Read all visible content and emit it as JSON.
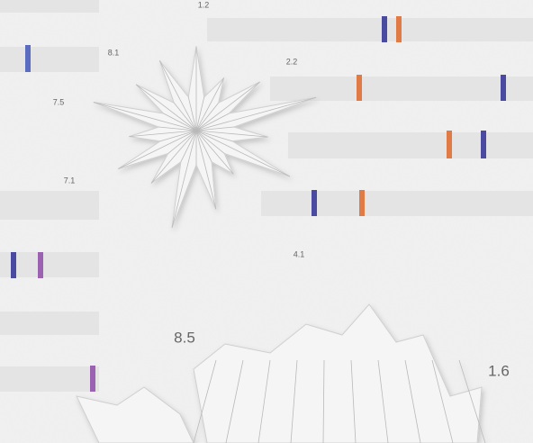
{
  "labels": [
    "1.2",
    "8.1",
    "2.2",
    "7.5",
    "7.1",
    "4.1",
    "8.5",
    "1.6"
  ]
}
